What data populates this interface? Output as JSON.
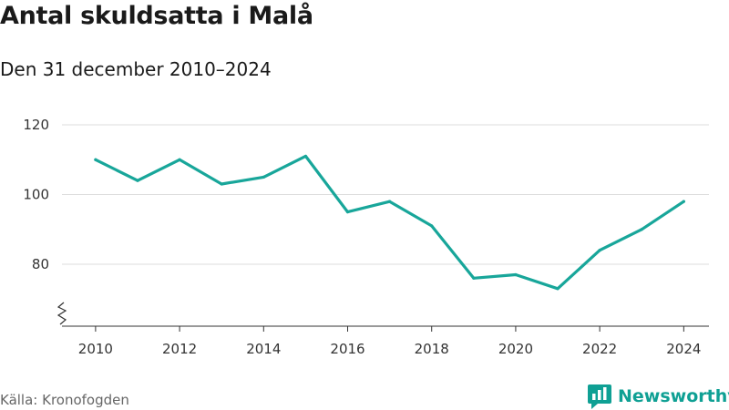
{
  "header": {
    "title": "Antal skuldsatta i Malå",
    "subtitle": "Den 31 december 2010–2024"
  },
  "footer": {
    "source": "Källa: Kronofogden",
    "brand": "Newsworthy"
  },
  "colors": {
    "line": "#18a69a",
    "brand": "#0fa094",
    "grid": "#dddddd",
    "axis": "#333333"
  },
  "chart_data": {
    "type": "line",
    "title": "Antal skuldsatta i Malå",
    "subtitle": "Den 31 december 2010–2024",
    "xlabel": "",
    "ylabel": "",
    "x": [
      2010,
      2011,
      2012,
      2013,
      2014,
      2015,
      2016,
      2017,
      2018,
      2019,
      2020,
      2021,
      2022,
      2023,
      2024
    ],
    "series": [
      {
        "values": [
          110,
          104,
          110,
          103,
          105,
          111,
          95,
          98,
          91,
          76,
          77,
          73,
          84,
          90,
          98
        ]
      }
    ],
    "xticks": [
      "2010",
      "2012",
      "2014",
      "2016",
      "2018",
      "2020",
      "2022",
      "2024"
    ],
    "yticks": [
      "80",
      "100",
      "120"
    ],
    "ylim": [
      62,
      120
    ],
    "y_axis_break": true,
    "grid": "horizontal",
    "legend": "none"
  }
}
